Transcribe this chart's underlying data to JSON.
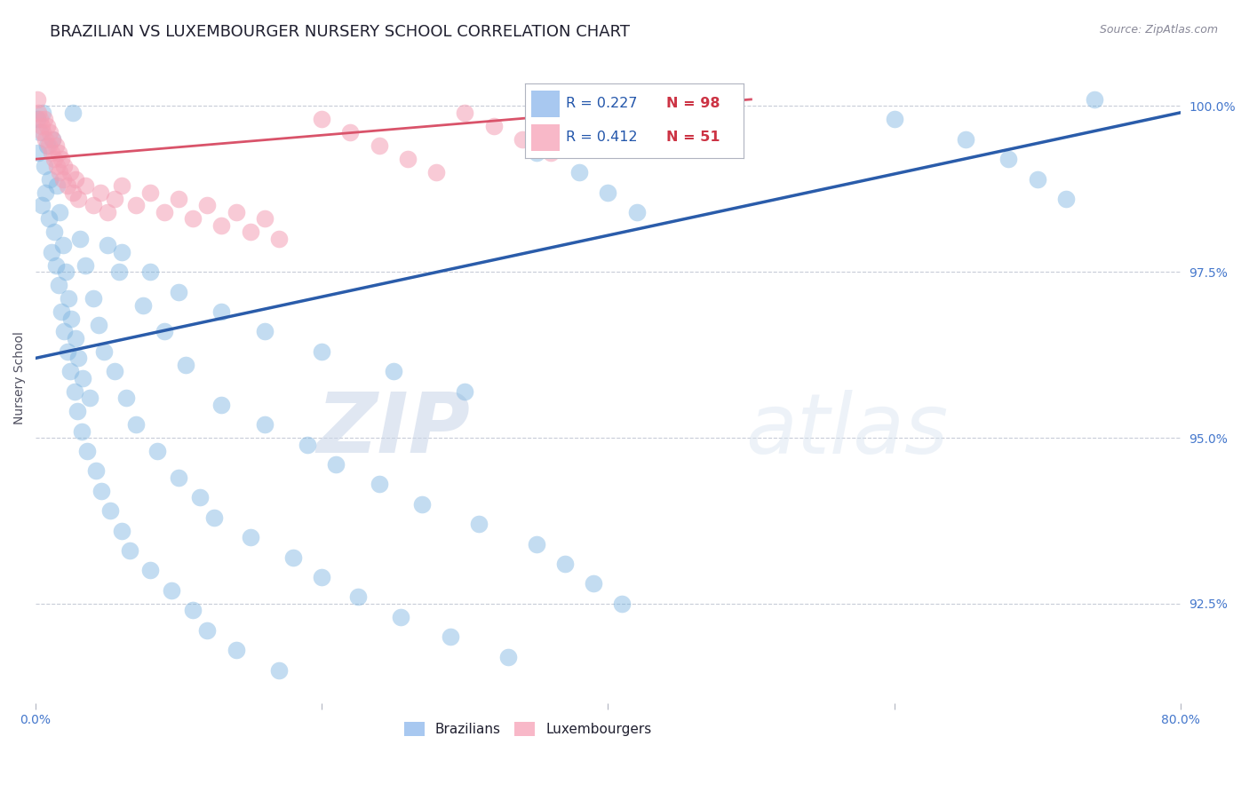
{
  "title": "BRAZILIAN VS LUXEMBOURGER NURSERY SCHOOL CORRELATION CHART",
  "source": "Source: ZipAtlas.com",
  "ylabel": "Nursery School",
  "x_min": 0.0,
  "x_max": 0.8,
  "y_min": 0.91,
  "y_max": 1.008,
  "x_ticks": [
    0.0,
    0.2,
    0.4,
    0.6,
    0.8
  ],
  "x_tick_labels": [
    "0.0%",
    "",
    "",
    "",
    "80.0%"
  ],
  "y_ticks": [
    0.925,
    0.95,
    0.975,
    1.0
  ],
  "y_tick_labels": [
    "92.5%",
    "95.0%",
    "97.5%",
    "100.0%"
  ],
  "R_blue": 0.227,
  "N_blue": 98,
  "R_pink": 0.412,
  "N_pink": 51,
  "blue_color": "#7ab3e0",
  "pink_color": "#f4a0b5",
  "line_blue": "#2a5caa",
  "line_pink": "#d9536a",
  "legend_box_blue": "#a8c8f0",
  "legend_box_pink": "#f8b8c8",
  "blue_scatter": [
    [
      0.001,
      0.998
    ],
    [
      0.002,
      0.993
    ],
    [
      0.003,
      0.996
    ],
    [
      0.004,
      0.985
    ],
    [
      0.005,
      0.999
    ],
    [
      0.006,
      0.991
    ],
    [
      0.007,
      0.987
    ],
    [
      0.008,
      0.994
    ],
    [
      0.009,
      0.983
    ],
    [
      0.01,
      0.989
    ],
    [
      0.011,
      0.978
    ],
    [
      0.012,
      0.995
    ],
    [
      0.013,
      0.981
    ],
    [
      0.014,
      0.976
    ],
    [
      0.015,
      0.988
    ],
    [
      0.016,
      0.973
    ],
    [
      0.017,
      0.984
    ],
    [
      0.018,
      0.969
    ],
    [
      0.019,
      0.979
    ],
    [
      0.02,
      0.966
    ],
    [
      0.021,
      0.975
    ],
    [
      0.022,
      0.963
    ],
    [
      0.023,
      0.971
    ],
    [
      0.024,
      0.96
    ],
    [
      0.025,
      0.968
    ],
    [
      0.026,
      0.999
    ],
    [
      0.027,
      0.957
    ],
    [
      0.028,
      0.965
    ],
    [
      0.029,
      0.954
    ],
    [
      0.03,
      0.962
    ],
    [
      0.031,
      0.98
    ],
    [
      0.032,
      0.951
    ],
    [
      0.033,
      0.959
    ],
    [
      0.035,
      0.976
    ],
    [
      0.036,
      0.948
    ],
    [
      0.038,
      0.956
    ],
    [
      0.04,
      0.971
    ],
    [
      0.042,
      0.945
    ],
    [
      0.044,
      0.967
    ],
    [
      0.046,
      0.942
    ],
    [
      0.048,
      0.963
    ],
    [
      0.05,
      0.979
    ],
    [
      0.052,
      0.939
    ],
    [
      0.055,
      0.96
    ],
    [
      0.058,
      0.975
    ],
    [
      0.06,
      0.936
    ],
    [
      0.063,
      0.956
    ],
    [
      0.066,
      0.933
    ],
    [
      0.07,
      0.952
    ],
    [
      0.075,
      0.97
    ],
    [
      0.08,
      0.93
    ],
    [
      0.085,
      0.948
    ],
    [
      0.09,
      0.966
    ],
    [
      0.095,
      0.927
    ],
    [
      0.1,
      0.944
    ],
    [
      0.105,
      0.961
    ],
    [
      0.11,
      0.924
    ],
    [
      0.115,
      0.941
    ],
    [
      0.12,
      0.921
    ],
    [
      0.125,
      0.938
    ],
    [
      0.13,
      0.955
    ],
    [
      0.14,
      0.918
    ],
    [
      0.15,
      0.935
    ],
    [
      0.16,
      0.952
    ],
    [
      0.17,
      0.915
    ],
    [
      0.18,
      0.932
    ],
    [
      0.19,
      0.949
    ],
    [
      0.2,
      0.929
    ],
    [
      0.21,
      0.946
    ],
    [
      0.225,
      0.926
    ],
    [
      0.24,
      0.943
    ],
    [
      0.255,
      0.923
    ],
    [
      0.27,
      0.94
    ],
    [
      0.29,
      0.92
    ],
    [
      0.31,
      0.937
    ],
    [
      0.33,
      0.917
    ],
    [
      0.35,
      0.934
    ],
    [
      0.37,
      0.931
    ],
    [
      0.39,
      0.928
    ],
    [
      0.41,
      0.925
    ],
    [
      0.06,
      0.978
    ],
    [
      0.08,
      0.975
    ],
    [
      0.1,
      0.972
    ],
    [
      0.13,
      0.969
    ],
    [
      0.16,
      0.966
    ],
    [
      0.2,
      0.963
    ],
    [
      0.25,
      0.96
    ],
    [
      0.3,
      0.957
    ],
    [
      0.35,
      0.993
    ],
    [
      0.38,
      0.99
    ],
    [
      0.4,
      0.987
    ],
    [
      0.42,
      0.984
    ],
    [
      0.6,
      0.998
    ],
    [
      0.65,
      0.995
    ],
    [
      0.68,
      0.992
    ],
    [
      0.7,
      0.989
    ],
    [
      0.72,
      0.986
    ],
    [
      0.74,
      1.001
    ]
  ],
  "pink_scatter": [
    [
      0.001,
      1.001
    ],
    [
      0.002,
      0.999
    ],
    [
      0.003,
      0.998
    ],
    [
      0.004,
      0.997
    ],
    [
      0.005,
      0.996
    ],
    [
      0.006,
      0.998
    ],
    [
      0.007,
      0.995
    ],
    [
      0.008,
      0.997
    ],
    [
      0.009,
      0.994
    ],
    [
      0.01,
      0.996
    ],
    [
      0.011,
      0.993
    ],
    [
      0.012,
      0.995
    ],
    [
      0.013,
      0.992
    ],
    [
      0.014,
      0.994
    ],
    [
      0.015,
      0.991
    ],
    [
      0.016,
      0.993
    ],
    [
      0.017,
      0.99
    ],
    [
      0.018,
      0.992
    ],
    [
      0.019,
      0.989
    ],
    [
      0.02,
      0.991
    ],
    [
      0.022,
      0.988
    ],
    [
      0.024,
      0.99
    ],
    [
      0.026,
      0.987
    ],
    [
      0.028,
      0.989
    ],
    [
      0.03,
      0.986
    ],
    [
      0.035,
      0.988
    ],
    [
      0.04,
      0.985
    ],
    [
      0.045,
      0.987
    ],
    [
      0.05,
      0.984
    ],
    [
      0.055,
      0.986
    ],
    [
      0.06,
      0.988
    ],
    [
      0.07,
      0.985
    ],
    [
      0.08,
      0.987
    ],
    [
      0.09,
      0.984
    ],
    [
      0.1,
      0.986
    ],
    [
      0.11,
      0.983
    ],
    [
      0.12,
      0.985
    ],
    [
      0.13,
      0.982
    ],
    [
      0.14,
      0.984
    ],
    [
      0.15,
      0.981
    ],
    [
      0.16,
      0.983
    ],
    [
      0.17,
      0.98
    ],
    [
      0.2,
      0.998
    ],
    [
      0.22,
      0.996
    ],
    [
      0.24,
      0.994
    ],
    [
      0.26,
      0.992
    ],
    [
      0.28,
      0.99
    ],
    [
      0.3,
      0.999
    ],
    [
      0.32,
      0.997
    ],
    [
      0.34,
      0.995
    ],
    [
      0.36,
      0.993
    ]
  ],
  "blue_line_x": [
    0.0,
    0.8
  ],
  "blue_line_y": [
    0.962,
    0.999
  ],
  "pink_line_x": [
    0.0,
    0.5
  ],
  "pink_line_y": [
    0.992,
    1.001
  ],
  "watermark_zip": "ZIP",
  "watermark_atlas": "atlas",
  "title_fontsize": 13,
  "axis_label_fontsize": 10,
  "tick_fontsize": 10,
  "source_fontsize": 9
}
